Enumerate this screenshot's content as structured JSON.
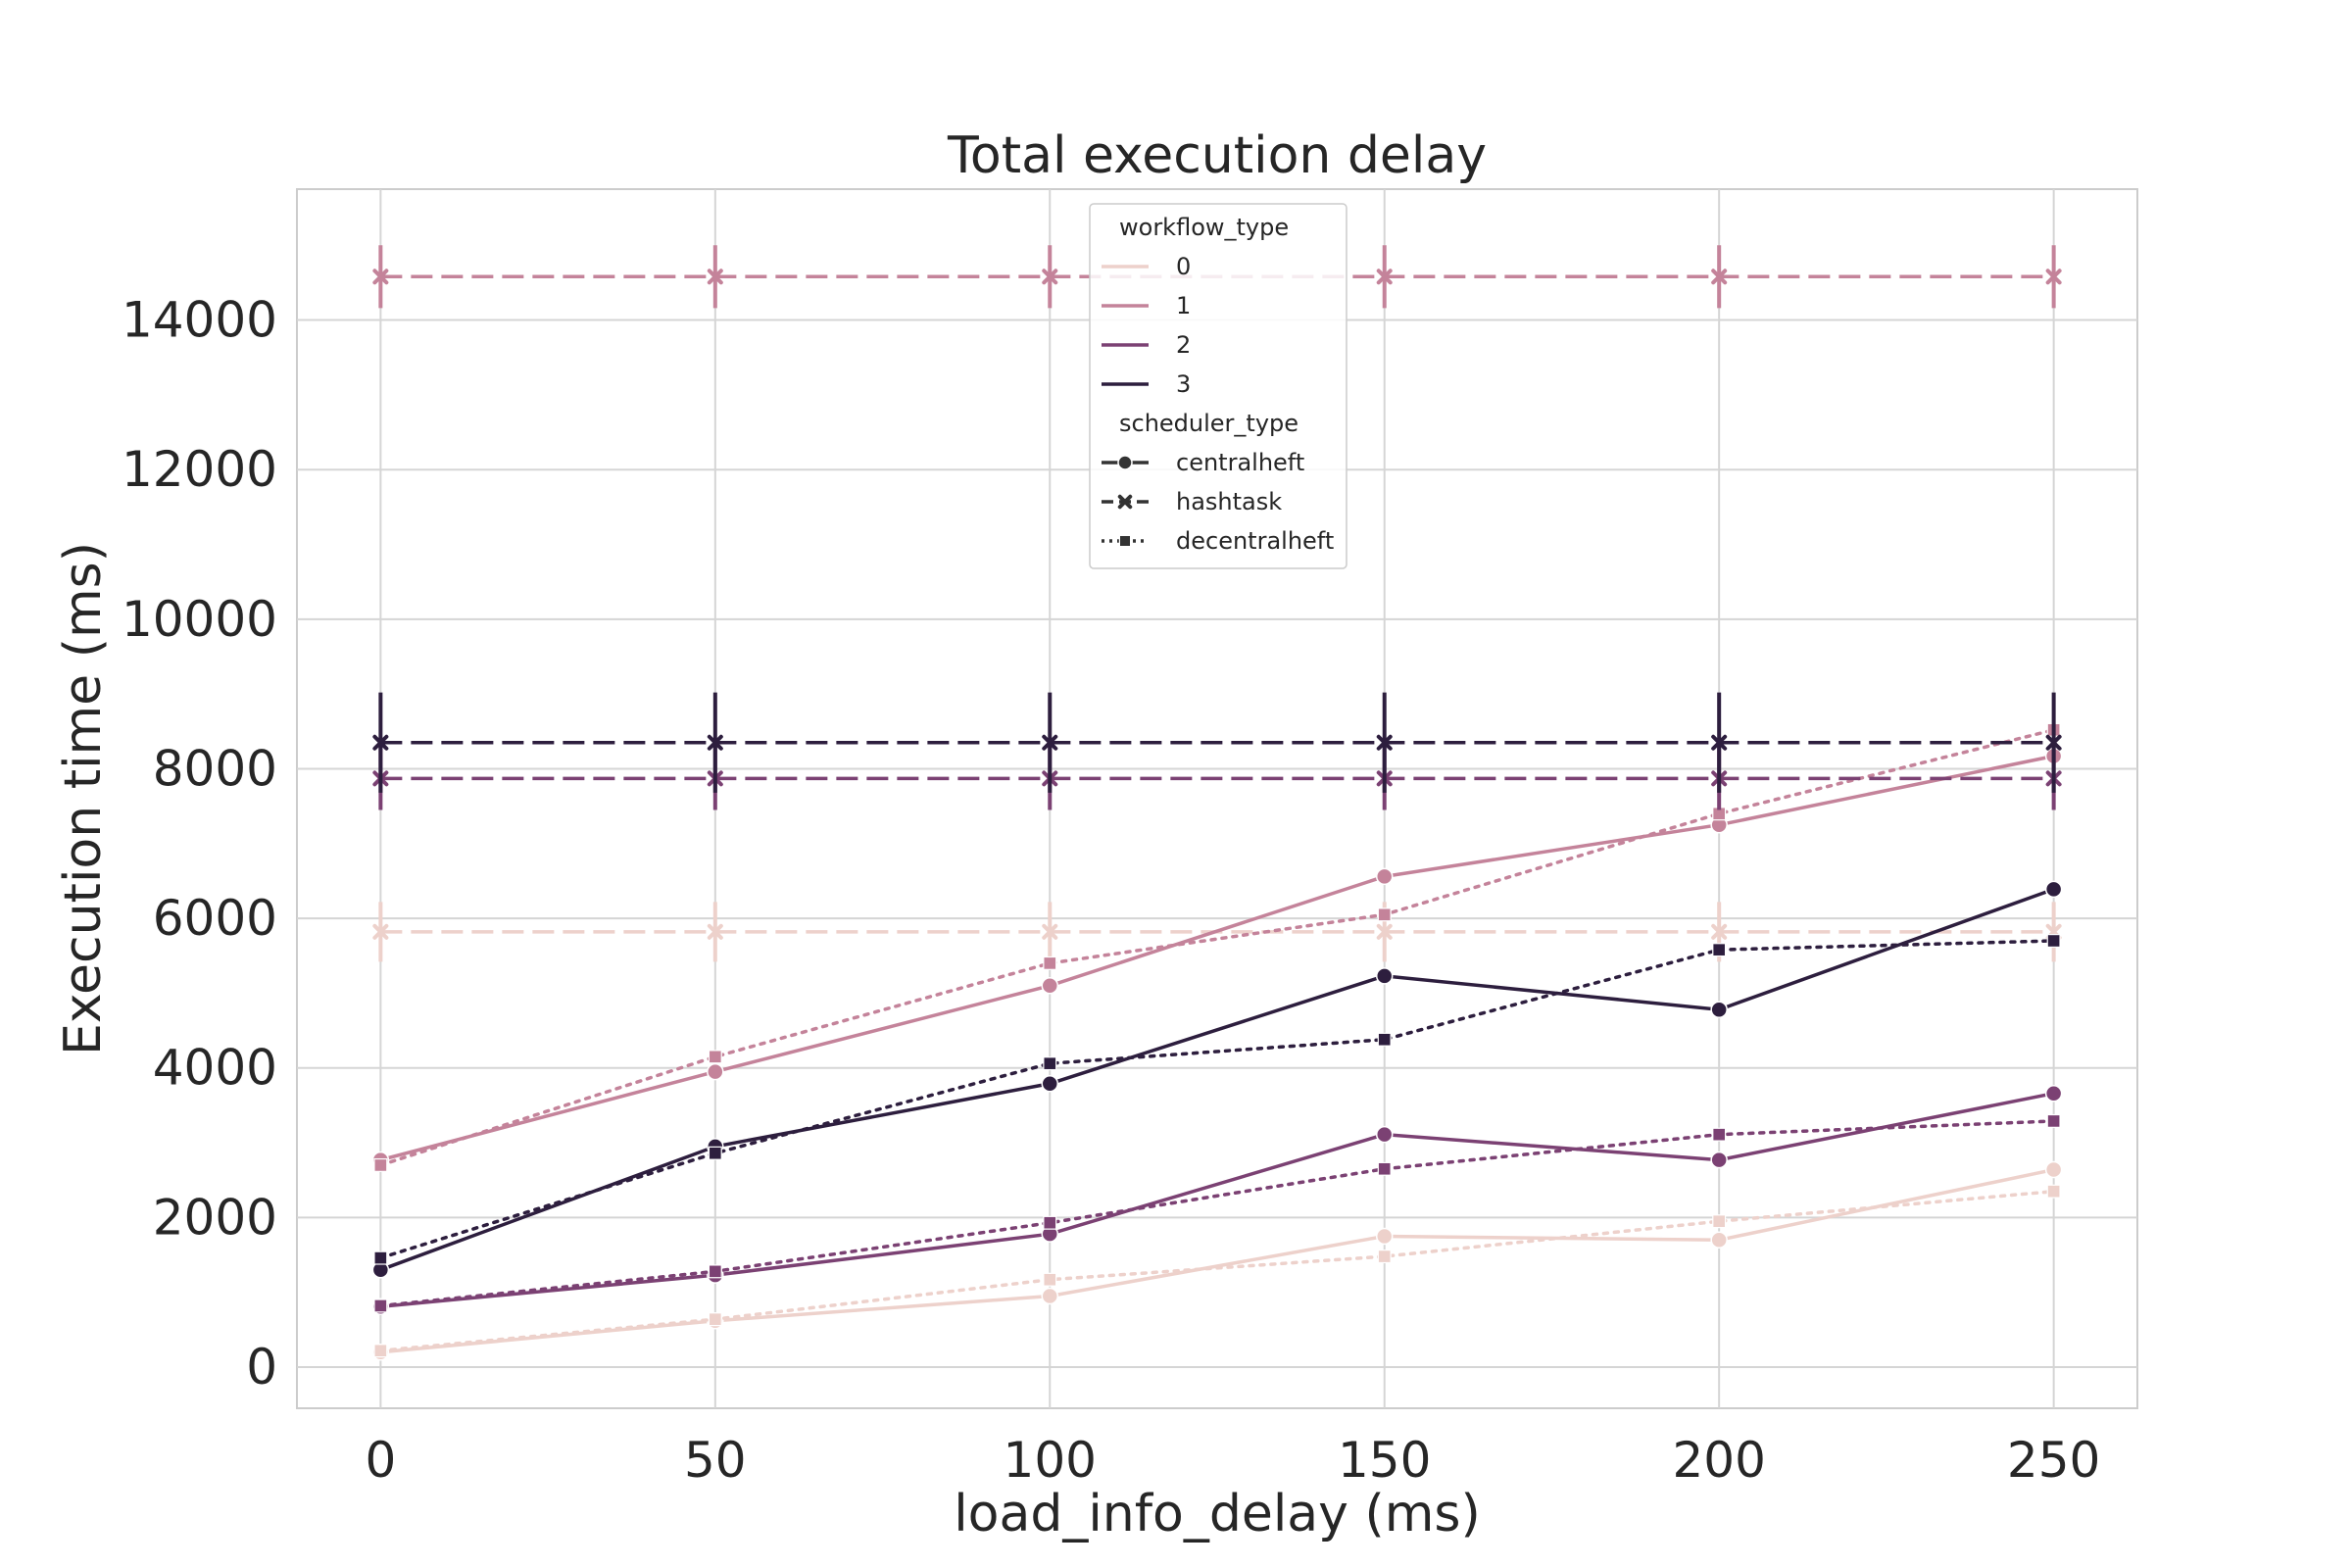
{
  "chart_data": {
    "type": "line",
    "title": "Total execution delay",
    "xlabel": "load_info_delay (ms)",
    "ylabel": "Execution time (ms)",
    "x": [
      0,
      50,
      100,
      150,
      200,
      250
    ],
    "x_ticks": [
      "0",
      "50",
      "100",
      "150",
      "200",
      "250"
    ],
    "y_ticks": [
      "0",
      "2000",
      "4000",
      "6000",
      "8000",
      "10000",
      "12000",
      "14000"
    ],
    "xlim": [
      -12.5,
      262.5
    ],
    "ylim": [
      -550,
      15750
    ],
    "grid": true,
    "legend_placement": "top-center",
    "legend": {
      "hue_title": "workflow_type",
      "hue_entries": [
        {
          "label": "0",
          "color": "#edd1cb"
        },
        {
          "label": "1",
          "color": "#c4839a"
        },
        {
          "label": "2",
          "color": "#7b4173"
        },
        {
          "label": "3",
          "color": "#2d1e3e"
        }
      ],
      "style_title": "scheduler_type",
      "style_entries": [
        {
          "label": "centralheft",
          "dash": "solid",
          "marker": "circle"
        },
        {
          "label": "hashtask",
          "dash": "dashed",
          "marker": "x"
        },
        {
          "label": "decentralheft",
          "dash": "dotted",
          "marker": "square"
        }
      ]
    },
    "series": [
      {
        "workflow_type": "0",
        "scheduler_type": "centralheft",
        "color": "#edd1cb",
        "values": [
          200,
          620,
          950,
          1750,
          1700,
          2640
        ]
      },
      {
        "workflow_type": "0",
        "scheduler_type": "hashtask",
        "color": "#edd1cb",
        "values": [
          5820,
          5820,
          5820,
          5820,
          5820,
          5820
        ],
        "error": [
          400,
          400,
          400,
          400,
          400,
          400
        ]
      },
      {
        "workflow_type": "0",
        "scheduler_type": "decentralheft",
        "color": "#edd1cb",
        "values": [
          220,
          640,
          1170,
          1480,
          1950,
          2350
        ]
      },
      {
        "workflow_type": "1",
        "scheduler_type": "centralheft",
        "color": "#c4839a",
        "values": [
          2770,
          3950,
          5100,
          6560,
          7250,
          8170
        ]
      },
      {
        "workflow_type": "1",
        "scheduler_type": "hashtask",
        "color": "#c4839a",
        "values": [
          14580,
          14580,
          14580,
          14580,
          14580,
          14580
        ],
        "error": [
          420,
          420,
          420,
          420,
          420,
          420
        ]
      },
      {
        "workflow_type": "1",
        "scheduler_type": "decentralheft",
        "color": "#c4839a",
        "values": [
          2700,
          4150,
          5400,
          6050,
          7400,
          8520
        ]
      },
      {
        "workflow_type": "2",
        "scheduler_type": "centralheft",
        "color": "#7b4173",
        "values": [
          810,
          1230,
          1780,
          3110,
          2770,
          3660
        ]
      },
      {
        "workflow_type": "2",
        "scheduler_type": "hashtask",
        "color": "#7b4173",
        "values": [
          7870,
          7870,
          7870,
          7870,
          7870,
          7870
        ],
        "error": [
          420,
          420,
          420,
          420,
          420,
          420
        ]
      },
      {
        "workflow_type": "2",
        "scheduler_type": "decentralheft",
        "color": "#7b4173",
        "values": [
          820,
          1280,
          1930,
          2650,
          3110,
          3290
        ]
      },
      {
        "workflow_type": "3",
        "scheduler_type": "centralheft",
        "color": "#2d1e3e",
        "values": [
          1300,
          2950,
          3790,
          5230,
          4780,
          6390
        ]
      },
      {
        "workflow_type": "3",
        "scheduler_type": "hashtask",
        "color": "#2d1e3e",
        "values": [
          8350,
          8350,
          8350,
          8350,
          8350,
          8350
        ],
        "error": [
          670,
          670,
          670,
          670,
          670,
          670
        ]
      },
      {
        "workflow_type": "3",
        "scheduler_type": "decentralheft",
        "color": "#2d1e3e",
        "values": [
          1460,
          2860,
          4060,
          4380,
          5580,
          5700
        ]
      }
    ]
  }
}
